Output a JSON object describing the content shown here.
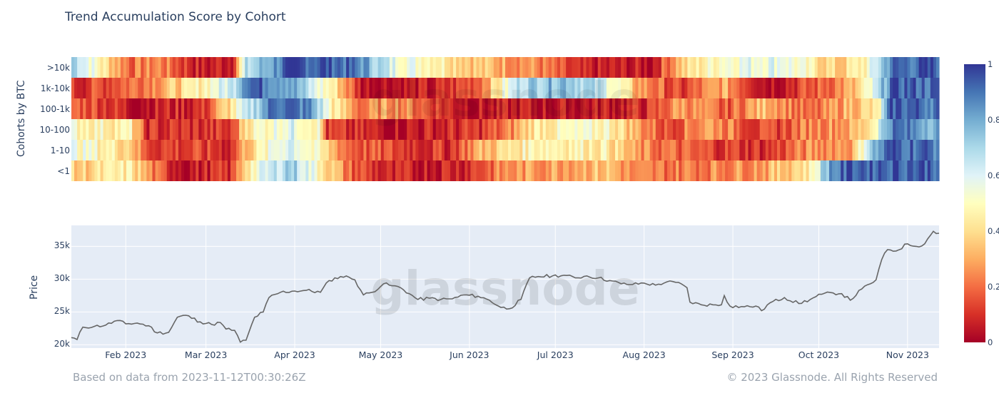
{
  "chart_data": [
    {
      "type": "heatmap",
      "title": "Trend Accumulation Score by Cohort",
      "ylabel": "Cohorts by BTC",
      "rows": [
        ">10k",
        "1k-10k",
        "100-1k",
        "10-100",
        "1-10",
        "<1"
      ],
      "x_range": [
        "2023-01-13",
        "2023-11-12"
      ],
      "colorscale": "RdYlBu",
      "colorbar": {
        "ticks": [
          "1",
          "0.8",
          "0.6",
          "0.4",
          "0.2",
          "0"
        ],
        "range": [
          0,
          1
        ]
      },
      "segments": [
        {
          "row": ">10k",
          "points": [
            [
              0,
              0.75
            ],
            [
              10,
              0.45
            ],
            [
              20,
              0.2
            ],
            [
              30,
              0.25
            ],
            [
              45,
              0.05
            ],
            [
              55,
              0.1
            ],
            [
              60,
              0.65
            ],
            [
              75,
              0.95
            ],
            [
              90,
              0.95
            ],
            [
              100,
              0.85
            ],
            [
              110,
              0.6
            ],
            [
              125,
              0.5
            ],
            [
              140,
              0.35
            ],
            [
              150,
              0.3
            ],
            [
              160,
              0.25
            ],
            [
              175,
              0.05
            ],
            [
              200,
              0.05
            ],
            [
              210,
              0.35
            ],
            [
              225,
              0.55
            ],
            [
              245,
              0.6
            ],
            [
              255,
              0.45
            ],
            [
              265,
              0.35
            ],
            [
              275,
              0.5
            ],
            [
              283,
              0.9
            ],
            [
              300,
              0.95
            ]
          ]
        },
        {
          "row": "1k-10k",
          "points": [
            [
              0,
              0.1
            ],
            [
              10,
              0.15
            ],
            [
              25,
              0.25
            ],
            [
              40,
              0.4
            ],
            [
              55,
              0.65
            ],
            [
              60,
              0.95
            ],
            [
              75,
              0.85
            ],
            [
              83,
              0.6
            ],
            [
              90,
              0.45
            ],
            [
              100,
              0.05
            ],
            [
              125,
              0.05
            ],
            [
              140,
              0.2
            ],
            [
              155,
              0.7
            ],
            [
              170,
              0.8
            ],
            [
              185,
              0.6
            ],
            [
              195,
              0.3
            ],
            [
              210,
              0.1
            ],
            [
              225,
              0.3
            ],
            [
              240,
              0.05
            ],
            [
              255,
              0.15
            ],
            [
              270,
              0.3
            ],
            [
              278,
              0.6
            ],
            [
              283,
              0.95
            ],
            [
              300,
              0.9
            ]
          ]
        },
        {
          "row": "100-1k",
          "points": [
            [
              0,
              0.2
            ],
            [
              10,
              0.15
            ],
            [
              20,
              0.05
            ],
            [
              45,
              0.1
            ],
            [
              60,
              0.6
            ],
            [
              70,
              0.95
            ],
            [
              82,
              0.85
            ],
            [
              90,
              0.45
            ],
            [
              100,
              0.2
            ],
            [
              110,
              0.3
            ],
            [
              130,
              0.1
            ],
            [
              140,
              0.05
            ],
            [
              175,
              0.05
            ],
            [
              200,
              0.1
            ],
            [
              210,
              0.3
            ],
            [
              225,
              0.15
            ],
            [
              240,
              0.35
            ],
            [
              255,
              0.15
            ],
            [
              270,
              0.35
            ],
            [
              278,
              0.4
            ],
            [
              283,
              0.95
            ],
            [
              300,
              0.9
            ]
          ]
        },
        {
          "row": "10-100",
          "points": [
            [
              0,
              0.5
            ],
            [
              20,
              0.45
            ],
            [
              25,
              0.1
            ],
            [
              55,
              0.1
            ],
            [
              60,
              0.45
            ],
            [
              75,
              0.6
            ],
            [
              85,
              0.5
            ],
            [
              88,
              0.1
            ],
            [
              110,
              0.05
            ],
            [
              140,
              0.1
            ],
            [
              150,
              0.2
            ],
            [
              160,
              0.45
            ],
            [
              185,
              0.5
            ],
            [
              195,
              0.3
            ],
            [
              205,
              0.15
            ],
            [
              220,
              0.3
            ],
            [
              240,
              0.1
            ],
            [
              255,
              0.25
            ],
            [
              270,
              0.3
            ],
            [
              276,
              0.45
            ],
            [
              283,
              0.9
            ],
            [
              300,
              0.8
            ]
          ]
        },
        {
          "row": "1-10",
          "points": [
            [
              0,
              0.55
            ],
            [
              20,
              0.4
            ],
            [
              25,
              0.15
            ],
            [
              55,
              0.1
            ],
            [
              60,
              0.35
            ],
            [
              75,
              0.65
            ],
            [
              85,
              0.45
            ],
            [
              95,
              0.2
            ],
            [
              105,
              0.15
            ],
            [
              130,
              0.1
            ],
            [
              140,
              0.3
            ],
            [
              160,
              0.5
            ],
            [
              185,
              0.45
            ],
            [
              195,
              0.25
            ],
            [
              215,
              0.15
            ],
            [
              240,
              0.1
            ],
            [
              255,
              0.25
            ],
            [
              270,
              0.3
            ],
            [
              275,
              0.7
            ],
            [
              283,
              0.95
            ],
            [
              300,
              0.9
            ]
          ]
        },
        {
          "row": "<1",
          "points": [
            [
              0,
              0.35
            ],
            [
              20,
              0.45
            ],
            [
              30,
              0.15
            ],
            [
              40,
              0.05
            ],
            [
              55,
              0.1
            ],
            [
              60,
              0.45
            ],
            [
              75,
              0.75
            ],
            [
              85,
              0.5
            ],
            [
              95,
              0.2
            ],
            [
              110,
              0.05
            ],
            [
              135,
              0.1
            ],
            [
              150,
              0.25
            ],
            [
              185,
              0.35
            ],
            [
              195,
              0.2
            ],
            [
              225,
              0.25
            ],
            [
              240,
              0.3
            ],
            [
              255,
              0.45
            ],
            [
              262,
              0.85
            ],
            [
              270,
              0.95
            ],
            [
              300,
              0.95
            ]
          ]
        }
      ]
    },
    {
      "type": "line",
      "ylabel": "Price",
      "x_range": [
        "2023-01-13",
        "2023-11-12"
      ],
      "ylim": [
        19500,
        38200
      ],
      "y_ticks": [
        "35k",
        "30k",
        "25k",
        "20k"
      ],
      "x_ticks": [
        "Feb 2023",
        "Mar 2023",
        "Apr 2023",
        "May 2023",
        "Jun 2023",
        "Jul 2023",
        "Aug 2023",
        "Sep 2023",
        "Oct 2023",
        "Nov 2023"
      ],
      "series": [
        {
          "color": "#666666",
          "points": [
            [
              "2023-01-13",
              21100
            ],
            [
              "2023-01-15",
              20800
            ],
            [
              "2023-01-17",
              22700
            ],
            [
              "2023-01-21",
              22800
            ],
            [
              "2023-01-25",
              23000
            ],
            [
              "2023-01-29",
              23700
            ],
            [
              "2023-02-01",
              23200
            ],
            [
              "2023-02-05",
              23300
            ],
            [
              "2023-02-09",
              22900
            ],
            [
              "2023-02-12",
              21800
            ],
            [
              "2023-02-16",
              21900
            ],
            [
              "2023-02-19",
              24200
            ],
            [
              "2023-02-22",
              24500
            ],
            [
              "2023-02-27",
              23500
            ],
            [
              "2023-03-03",
              23100
            ],
            [
              "2023-03-06",
              23400
            ],
            [
              "2023-03-08",
              22400
            ],
            [
              "2023-03-11",
              22200
            ],
            [
              "2023-03-13",
              20400
            ],
            [
              "2023-03-15",
              20700
            ],
            [
              "2023-03-18",
              24200
            ],
            [
              "2023-03-21",
              25000
            ],
            [
              "2023-03-23",
              27200
            ],
            [
              "2023-03-27",
              28000
            ],
            [
              "2023-04-01",
              28200
            ],
            [
              "2023-04-05",
              28300
            ],
            [
              "2023-04-10",
              28000
            ],
            [
              "2023-04-13",
              29800
            ],
            [
              "2023-04-17",
              30400
            ],
            [
              "2023-04-20",
              30300
            ],
            [
              "2023-04-22",
              29900
            ],
            [
              "2023-04-25",
              27600
            ],
            [
              "2023-04-28",
              28000
            ],
            [
              "2023-05-02",
              29300
            ],
            [
              "2023-05-05",
              29000
            ],
            [
              "2023-05-08",
              28700
            ],
            [
              "2023-05-11",
              27800
            ],
            [
              "2023-05-14",
              26900
            ],
            [
              "2023-05-18",
              27100
            ],
            [
              "2023-05-22",
              26900
            ],
            [
              "2023-05-26",
              27000
            ],
            [
              "2023-05-30",
              27600
            ],
            [
              "2023-06-04",
              27400
            ],
            [
              "2023-06-08",
              26800
            ],
            [
              "2023-06-12",
              25700
            ],
            [
              "2023-06-15",
              25500
            ],
            [
              "2023-06-19",
              26900
            ],
            [
              "2023-06-22",
              30200
            ],
            [
              "2023-06-25",
              30400
            ],
            [
              "2023-06-30",
              30500
            ],
            [
              "2023-07-04",
              30600
            ],
            [
              "2023-07-08",
              30200
            ],
            [
              "2023-07-12",
              30500
            ],
            [
              "2023-07-16",
              30200
            ],
            [
              "2023-07-20",
              29800
            ],
            [
              "2023-07-24",
              29300
            ],
            [
              "2023-07-28",
              29200
            ],
            [
              "2023-08-01",
              29400
            ],
            [
              "2023-08-05",
              29100
            ],
            [
              "2023-08-09",
              29600
            ],
            [
              "2023-08-14",
              29300
            ],
            [
              "2023-08-16",
              28700
            ],
            [
              "2023-08-17",
              26500
            ],
            [
              "2023-08-21",
              26100
            ],
            [
              "2023-08-25",
              26100
            ],
            [
              "2023-08-28",
              26100
            ],
            [
              "2023-08-29",
              27500
            ],
            [
              "2023-08-31",
              25900
            ],
            [
              "2023-09-05",
              25800
            ],
            [
              "2023-09-09",
              25900
            ],
            [
              "2023-09-11",
              25200
            ],
            [
              "2023-09-14",
              26400
            ],
            [
              "2023-09-19",
              27200
            ],
            [
              "2023-09-24",
              26300
            ],
            [
              "2023-09-28",
              26900
            ],
            [
              "2023-10-02",
              27700
            ],
            [
              "2023-10-06",
              27900
            ],
            [
              "2023-10-09",
              27800
            ],
            [
              "2023-10-12",
              26800
            ],
            [
              "2023-10-16",
              28500
            ],
            [
              "2023-10-19",
              29300
            ],
            [
              "2023-10-21",
              29900
            ],
            [
              "2023-10-23",
              33000
            ],
            [
              "2023-10-25",
              34500
            ],
            [
              "2023-10-28",
              34300
            ],
            [
              "2023-11-01",
              35400
            ],
            [
              "2023-11-04",
              35000
            ],
            [
              "2023-11-07",
              35400
            ],
            [
              "2023-11-09",
              36700
            ],
            [
              "2023-11-10",
              37300
            ],
            [
              "2023-11-12",
              37000
            ]
          ]
        }
      ]
    }
  ],
  "footer": {
    "left": "Based on data from 2023-11-12T00:30:26Z",
    "right": "© 2023 Glassnode. All Rights Reserved"
  },
  "watermark": "glassnode"
}
